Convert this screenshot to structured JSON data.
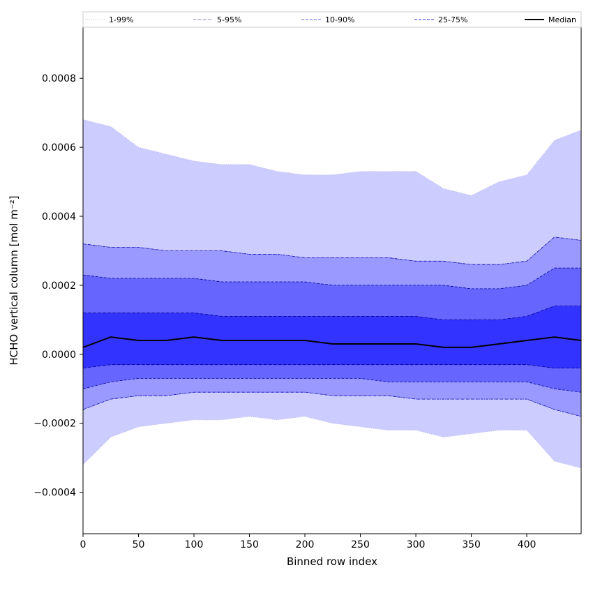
{
  "chart_data": {
    "type": "area",
    "title": "",
    "xlabel": "Binned row index",
    "ylabel": "HCHO vertical column [mol m⁻²]",
    "xlim": [
      0,
      449
    ],
    "ylim": [
      -0.00052,
      0.00095
    ],
    "x_ticks": [
      0,
      50,
      100,
      150,
      200,
      250,
      300,
      350,
      400
    ],
    "y_ticks": [
      -0.0004,
      -0.0002,
      0.0,
      0.0002,
      0.0004,
      0.0006,
      0.0008
    ],
    "y_tick_labels": [
      "−0.0004",
      "−0.0002",
      "0.0000",
      "0.0002",
      "0.0004",
      "0.0006",
      "0.0008"
    ],
    "grid": false,
    "legend_position": "top, spanning full width (one row)",
    "legend": [
      {
        "label": "1-99%",
        "style": "dotted",
        "color": "#b9b9e6"
      },
      {
        "label": "5-95%",
        "style": "dashdot",
        "color": "#8080d0"
      },
      {
        "label": "10-90%",
        "style": "dashed",
        "color": "#6060e0"
      },
      {
        "label": "25-75%",
        "style": "dashed",
        "color": "#3030e0"
      },
      {
        "label": "Median",
        "style": "solid",
        "color": "#000000"
      }
    ],
    "x": [
      0,
      25,
      50,
      75,
      100,
      125,
      150,
      175,
      200,
      225,
      250,
      275,
      300,
      325,
      350,
      375,
      400,
      425,
      449
    ],
    "bands": [
      {
        "name": "1-99%",
        "fill": "#ccccff",
        "upper": [
          0.00068,
          0.00066,
          0.0006,
          0.00058,
          0.00056,
          0.00055,
          0.00055,
          0.00053,
          0.00052,
          0.00052,
          0.00053,
          0.00053,
          0.00053,
          0.00048,
          0.00046,
          0.0005,
          0.00052,
          0.00062,
          0.00065
        ],
        "lower": [
          -0.00032,
          -0.00024,
          -0.00021,
          -0.0002,
          -0.00019,
          -0.00019,
          -0.00018,
          -0.00019,
          -0.00018,
          -0.0002,
          -0.00021,
          -0.00022,
          -0.00022,
          -0.00024,
          -0.00023,
          -0.00022,
          -0.00022,
          -0.00031,
          -0.00033
        ]
      },
      {
        "name": "5-95%",
        "fill": "#9999ff",
        "upper": [
          0.00032,
          0.00031,
          0.00031,
          0.0003,
          0.0003,
          0.0003,
          0.00029,
          0.00029,
          0.00028,
          0.00028,
          0.00028,
          0.00028,
          0.00027,
          0.00027,
          0.00026,
          0.00026,
          0.00027,
          0.00034,
          0.00033
        ],
        "lower": [
          -0.00016,
          -0.00013,
          -0.00012,
          -0.00012,
          -0.00011,
          -0.00011,
          -0.00011,
          -0.00011,
          -0.00011,
          -0.00012,
          -0.00012,
          -0.00012,
          -0.00013,
          -0.00013,
          -0.00013,
          -0.00013,
          -0.00013,
          -0.00016,
          -0.00018
        ]
      },
      {
        "name": "10-90%",
        "fill": "#6666ff",
        "upper": [
          0.00023,
          0.00022,
          0.00022,
          0.00022,
          0.00022,
          0.00021,
          0.00021,
          0.00021,
          0.00021,
          0.0002,
          0.0002,
          0.0002,
          0.0002,
          0.0002,
          0.00019,
          0.00019,
          0.0002,
          0.00025,
          0.00025
        ],
        "lower": [
          -0.0001,
          -8e-05,
          -7e-05,
          -7e-05,
          -7e-05,
          -7e-05,
          -7e-05,
          -7e-05,
          -7e-05,
          -7e-05,
          -7e-05,
          -8e-05,
          -8e-05,
          -8e-05,
          -8e-05,
          -8e-05,
          -8e-05,
          -0.0001,
          -0.00011
        ]
      },
      {
        "name": "25-75%",
        "fill": "#3333ff",
        "upper": [
          0.00012,
          0.00012,
          0.00012,
          0.00012,
          0.00012,
          0.00011,
          0.00011,
          0.00011,
          0.00011,
          0.00011,
          0.00011,
          0.00011,
          0.00011,
          0.0001,
          0.0001,
          0.0001,
          0.00011,
          0.00014,
          0.00014
        ],
        "lower": [
          -4e-05,
          -3e-05,
          -3e-05,
          -3e-05,
          -3e-05,
          -3e-05,
          -3e-05,
          -3e-05,
          -3e-05,
          -3e-05,
          -3e-05,
          -3e-05,
          -3e-05,
          -3e-05,
          -3e-05,
          -3e-05,
          -3e-05,
          -4e-05,
          -4e-05
        ]
      }
    ],
    "median": [
      2e-05,
      5e-05,
      4e-05,
      4e-05,
      5e-05,
      4e-05,
      4e-05,
      4e-05,
      4e-05,
      3e-05,
      3e-05,
      3e-05,
      3e-05,
      2e-05,
      2e-05,
      3e-05,
      4e-05,
      5e-05,
      4e-05
    ],
    "line_colors": {
      "1-99%": "#b0b0f0",
      "5-95%": "#0000aa",
      "10-90%": "#000099",
      "25-75%": "#000088",
      "Median": "#000000"
    }
  }
}
